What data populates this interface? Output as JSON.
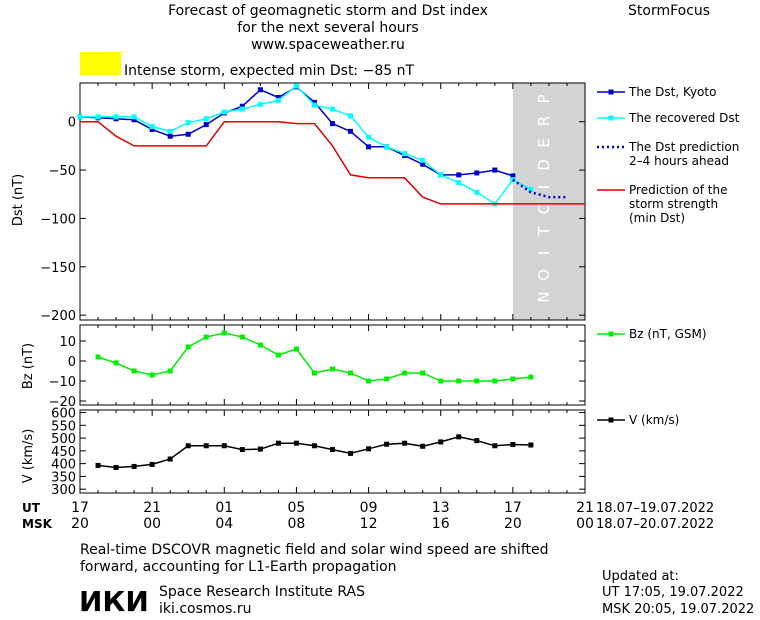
{
  "header": {
    "title_lines": [
      "Forecast of geomagnetic storm and Dst index",
      "for the next several hours",
      "www.spaceweather.ru"
    ],
    "brand": "StormFocus"
  },
  "alert": {
    "text": "Intense storm, expected min Dst: −85 nT",
    "color": "#ffff00"
  },
  "time_axis": {
    "ut_label": "UT",
    "msk_label": "MSK",
    "ut_ticks": [
      "17",
      "21",
      "01",
      "05",
      "09",
      "13",
      "17",
      "21"
    ],
    "msk_ticks": [
      "20",
      "00",
      "04",
      "08",
      "12",
      "16",
      "20",
      "00"
    ],
    "ut_range": "18.07–19.07.2022",
    "msk_range": "18.07–20.07.2022"
  },
  "footer": {
    "note_lines": [
      "Real-time DSCOVR magnetic field and solar wind speed are shifted",
      "forward, accounting for L1-Earth propagation"
    ],
    "logo_text": "ИКИ",
    "institute": "Space Research Institute RAS",
    "site": "iki.cosmos.ru",
    "updated_label": "Updated at:",
    "updated_ut": "UT   17:05, 19.07.2022",
    "updated_msk": "MSK 20:05, 19.07.2022"
  },
  "chart_data": [
    {
      "type": "line",
      "ylabel": "Dst (nT)",
      "ylim": [
        -205,
        40
      ],
      "yticks": [
        0,
        -50,
        -100,
        -150,
        -200
      ],
      "ytick_labels": [
        "0",
        "−50",
        "−100",
        "−150",
        "−200"
      ],
      "grid": false,
      "legend": "right",
      "prediction_label": "PREDICTION",
      "prediction_region_hours": [
        24,
        28
      ],
      "series": [
        {
          "name": "The Dst, Kyoto",
          "color": "#0000cc",
          "style": "line-square",
          "x": [
            0,
            1,
            2,
            3,
            4,
            5,
            6,
            7,
            8,
            9,
            10,
            11,
            12,
            13,
            14,
            15,
            16,
            17,
            18,
            19,
            20,
            21,
            22,
            23,
            24
          ],
          "y": [
            5,
            4,
            3,
            2,
            -8,
            -15,
            -13,
            -3,
            9,
            16,
            33,
            25,
            36,
            20,
            -2,
            -10,
            -26,
            -26,
            -35,
            -44,
            -55,
            -55,
            -53,
            -50,
            -56
          ]
        },
        {
          "name": "The recovered Dst",
          "color": "#00ffff",
          "style": "line-square",
          "x": [
            0,
            1,
            2,
            3,
            4,
            5,
            6,
            7,
            8,
            9,
            10,
            11,
            12,
            13,
            14,
            15,
            16,
            17,
            18,
            19,
            20,
            21,
            22,
            23,
            24,
            25
          ],
          "y": [
            5,
            5,
            5,
            5,
            -5,
            -10,
            -1,
            3,
            10,
            13,
            18,
            22,
            37,
            17,
            13,
            6,
            -16,
            -26,
            -33,
            -40,
            -55,
            -63,
            -73,
            -85,
            -60,
            -70
          ]
        },
        {
          "name": "The Dst prediction\n2–4 hours ahead",
          "color": "#0000cc",
          "style": "dotted",
          "x": [
            24,
            25,
            26,
            27
          ],
          "y": [
            -60,
            -73,
            -78,
            -78
          ]
        },
        {
          "name": "Prediction of the\nstorm strength\n(min Dst)",
          "color": "#dd0000",
          "style": "line",
          "x": [
            0,
            1,
            2,
            3,
            4,
            5,
            6,
            7,
            8,
            9,
            10,
            11,
            12,
            13,
            14,
            15,
            16,
            17,
            18,
            19,
            20,
            21,
            22,
            23,
            24,
            25,
            26,
            27,
            28
          ],
          "y": [
            0,
            0,
            -15,
            -25,
            -25,
            -25,
            -25,
            -25,
            0,
            0,
            0,
            0,
            -2,
            -2,
            -25,
            -55,
            -58,
            -58,
            -58,
            -78,
            -85,
            -85,
            -85,
            -85,
            -85,
            -85,
            -85,
            -85,
            -85
          ]
        }
      ]
    },
    {
      "type": "line",
      "ylabel": "Bz (nT)",
      "ylim": [
        -22,
        18
      ],
      "yticks": [
        10,
        0,
        -10,
        -20
      ],
      "ytick_labels": [
        "10",
        "0",
        "−10",
        "−20"
      ],
      "legend": "right",
      "series": [
        {
          "name": "Bz (nT, GSM)",
          "color": "#00ee00",
          "style": "line-square",
          "x": [
            1,
            2,
            3,
            4,
            5,
            6,
            7,
            8,
            9,
            10,
            11,
            12,
            13,
            14,
            15,
            16,
            17,
            18,
            19,
            20,
            21,
            22,
            23,
            24,
            25
          ],
          "y": [
            2,
            -1,
            -5,
            -7,
            -5,
            7,
            12,
            14,
            12,
            8,
            3,
            6,
            -6,
            -4,
            -6,
            -10,
            -9,
            -6,
            -6,
            -10,
            -10,
            -10,
            -10,
            -9,
            -8
          ]
        }
      ]
    },
    {
      "type": "line",
      "ylabel": "V (km/s)",
      "ylim": [
        285,
        610
      ],
      "yticks": [
        600,
        550,
        500,
        450,
        400,
        350,
        300
      ],
      "ytick_labels": [
        "600",
        "550",
        "500",
        "450",
        "400",
        "350",
        "300"
      ],
      "legend": "right",
      "series": [
        {
          "name": "V (km/s)",
          "color": "#000000",
          "style": "line-square",
          "x": [
            1,
            2,
            3,
            4,
            5,
            6,
            7,
            8,
            9,
            10,
            11,
            12,
            13,
            14,
            15,
            16,
            17,
            18,
            19,
            20,
            21,
            22,
            23,
            24,
            25
          ],
          "y": [
            393,
            385,
            389,
            397,
            418,
            470,
            470,
            470,
            455,
            457,
            480,
            480,
            470,
            455,
            440,
            458,
            476,
            480,
            468,
            485,
            505,
            490,
            470,
            475,
            473
          ]
        }
      ]
    }
  ]
}
